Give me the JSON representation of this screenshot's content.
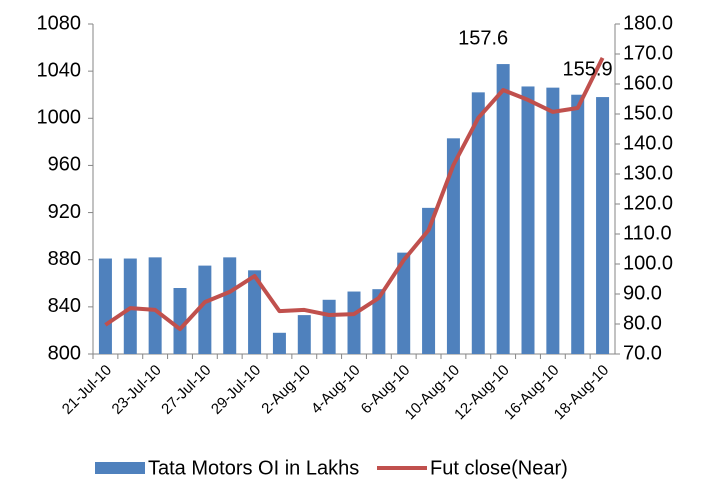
{
  "chart_data": {
    "type": "bar-line",
    "categories": [
      "21-Jul-10",
      null,
      "23-Jul-10",
      null,
      "27-Jul-10",
      null,
      "29-Jul-10",
      null,
      "2-Aug-10",
      null,
      "4-Aug-10",
      null,
      "6-Aug-10",
      null,
      "10-Aug-10",
      null,
      "12-Aug-10",
      null,
      "16-Aug-10",
      null,
      "18-Aug-10"
    ],
    "series": [
      {
        "name": "Tata Motors OI in Lakhs",
        "type": "bar",
        "color": "#4f81bd",
        "values": [
          881,
          881,
          882,
          856,
          875,
          882,
          871,
          818,
          833,
          846,
          853,
          855,
          886,
          924,
          983,
          1022,
          1046,
          1027,
          1026,
          1020,
          1018
        ]
      },
      {
        "name": "Fut close(Near)",
        "type": "line",
        "axis": "y2",
        "color": "#c0504d",
        "values": [
          79.7,
          85.3,
          84.7,
          78.3,
          87.3,
          90.7,
          96,
          84.3,
          84.7,
          83,
          83.3,
          88.7,
          101.3,
          111.3,
          133,
          148.7,
          158,
          154.7,
          150.7,
          152,
          168.7
        ]
      }
    ],
    "annotations": [
      "157.6",
      "155.9"
    ],
    "ylim": [
      800,
      1080
    ],
    "yticks": [
      800,
      840,
      880,
      920,
      960,
      1000,
      1040,
      1080
    ],
    "y2lim": [
      70,
      180
    ],
    "y2ticks": [
      {
        "value": 70,
        "label": "70.0"
      },
      {
        "value": 80,
        "label": "80.0"
      },
      {
        "value": 90,
        "label": "90.0"
      },
      {
        "value": 100,
        "label": "100.0"
      },
      {
        "value": 110,
        "label": "110.0"
      },
      {
        "value": 120,
        "label": "120.0"
      },
      {
        "value": 130,
        "label": "130.0"
      },
      {
        "value": 140,
        "label": "140.0"
      },
      {
        "value": 150,
        "label": "150.0"
      },
      {
        "value": 160,
        "label": "160.0"
      },
      {
        "value": 170,
        "label": "170.0"
      },
      {
        "value": 180,
        "label": "180.0"
      }
    ],
    "legend": "bottom"
  }
}
